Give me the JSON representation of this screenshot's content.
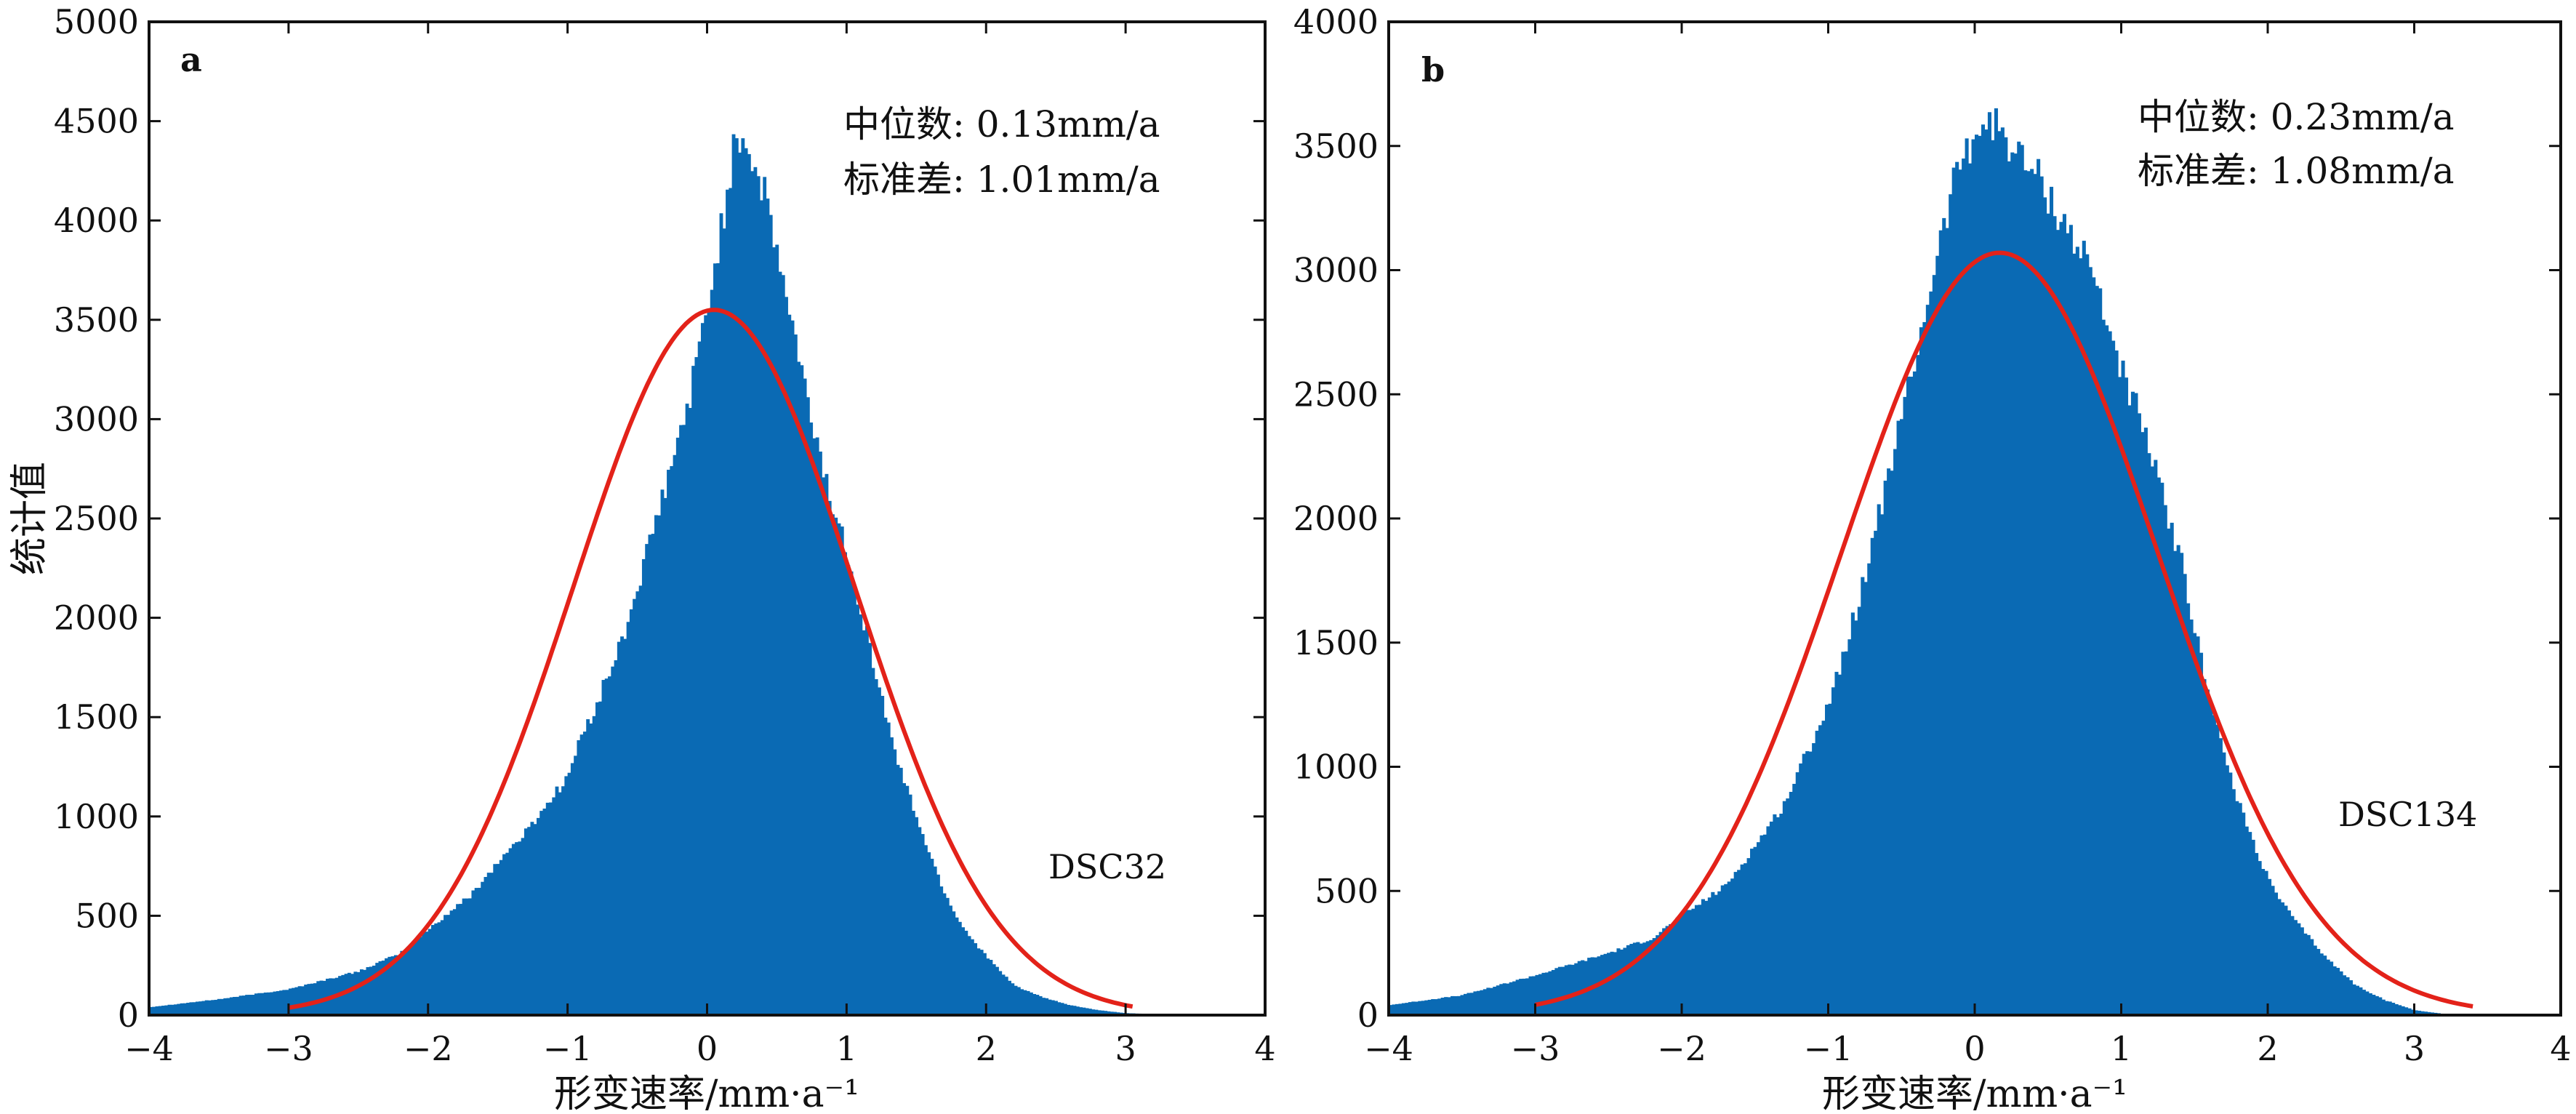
{
  "figure": {
    "ylabel": "统计值",
    "xlabel": "形变速率/mm·a⁻¹"
  },
  "colors": {
    "bars": "#0a6ab4",
    "fit_curve": "#e32219",
    "axes": "#111111"
  },
  "chart_data": [
    {
      "type": "bar",
      "panel": "a",
      "dataset": "DSC32",
      "median_text": "中位数: 0.13mm/a",
      "std_text": "标准差: 1.01mm/a",
      "xlim": [
        -4,
        4
      ],
      "ylim": [
        0,
        5000
      ],
      "xticks": [
        -4,
        -3,
        -2,
        -1,
        0,
        1,
        2,
        3,
        4
      ],
      "yticks": [
        0,
        500,
        1000,
        1500,
        2000,
        2500,
        3000,
        3500,
        4000,
        4500,
        5000
      ],
      "histogram_envelope": {
        "x": [
          -4.0,
          -3.5,
          -3.0,
          -2.5,
          -2.2,
          -2.0,
          -1.7,
          -1.5,
          -1.3,
          -1.0,
          -0.9,
          -0.8,
          -0.6,
          -0.5,
          -0.4,
          -0.3,
          -0.2,
          -0.1,
          0.0,
          0.1,
          0.15,
          0.2,
          0.3,
          0.4,
          0.5,
          0.6,
          0.7,
          0.8,
          0.9,
          1.0,
          1.1,
          1.2,
          1.3,
          1.4,
          1.5,
          1.6,
          1.7,
          1.8,
          1.9,
          2.0,
          2.1,
          2.2,
          2.4,
          2.6,
          2.8,
          3.0,
          3.2,
          4.0
        ],
        "y": [
          40,
          80,
          130,
          220,
          310,
          430,
          600,
          770,
          920,
          1200,
          1400,
          1550,
          1900,
          2150,
          2400,
          2650,
          2900,
          3200,
          3550,
          3950,
          4150,
          4480,
          4350,
          4150,
          3850,
          3500,
          3150,
          2850,
          2550,
          2350,
          2050,
          1750,
          1450,
          1200,
          1000,
          800,
          620,
          480,
          380,
          300,
          220,
          150,
          90,
          50,
          25,
          10,
          5,
          0
        ]
      },
      "fit_curve": {
        "mean": 0.05,
        "sigma": 1.01,
        "peak": 3550,
        "x_range": [
          -3.0,
          3.05
        ]
      }
    },
    {
      "type": "bar",
      "panel": "b",
      "dataset": "DSC134",
      "median_text": "中位数: 0.23mm/a",
      "std_text": "标准差: 1.08mm/a",
      "xlim": [
        -4,
        4
      ],
      "ylim": [
        0,
        4000
      ],
      "xticks": [
        -4,
        -3,
        -2,
        -1,
        0,
        1,
        2,
        3,
        4
      ],
      "yticks": [
        0,
        500,
        1000,
        1500,
        2000,
        2500,
        3000,
        3500,
        4000
      ],
      "histogram_envelope": {
        "x": [
          -4.0,
          -3.5,
          -3.0,
          -2.5,
          -2.2,
          -2.0,
          -1.7,
          -1.5,
          -1.3,
          -1.0,
          -0.8,
          -0.6,
          -0.4,
          -0.3,
          -0.2,
          -0.1,
          0.0,
          0.1,
          0.2,
          0.3,
          0.4,
          0.5,
          0.6,
          0.7,
          0.8,
          0.9,
          1.0,
          1.1,
          1.2,
          1.3,
          1.4,
          1.5,
          1.6,
          1.7,
          1.8,
          1.9,
          2.0,
          2.1,
          2.2,
          2.4,
          2.6,
          2.8,
          3.0,
          3.2,
          4.0
        ],
        "y": [
          40,
          80,
          160,
          250,
          310,
          400,
          520,
          680,
          850,
          1250,
          1650,
          2150,
          2650,
          2950,
          3200,
          3450,
          3550,
          3600,
          3550,
          3450,
          3400,
          3300,
          3200,
          3100,
          3000,
          2800,
          2600,
          2450,
          2250,
          2050,
          1850,
          1550,
          1300,
          1050,
          850,
          700,
          550,
          450,
          370,
          230,
          120,
          60,
          20,
          5,
          0
        ]
      },
      "fit_curve": {
        "mean": 0.17,
        "sigma": 1.08,
        "peak": 3070,
        "x_range": [
          -3.0,
          3.4
        ]
      }
    }
  ]
}
